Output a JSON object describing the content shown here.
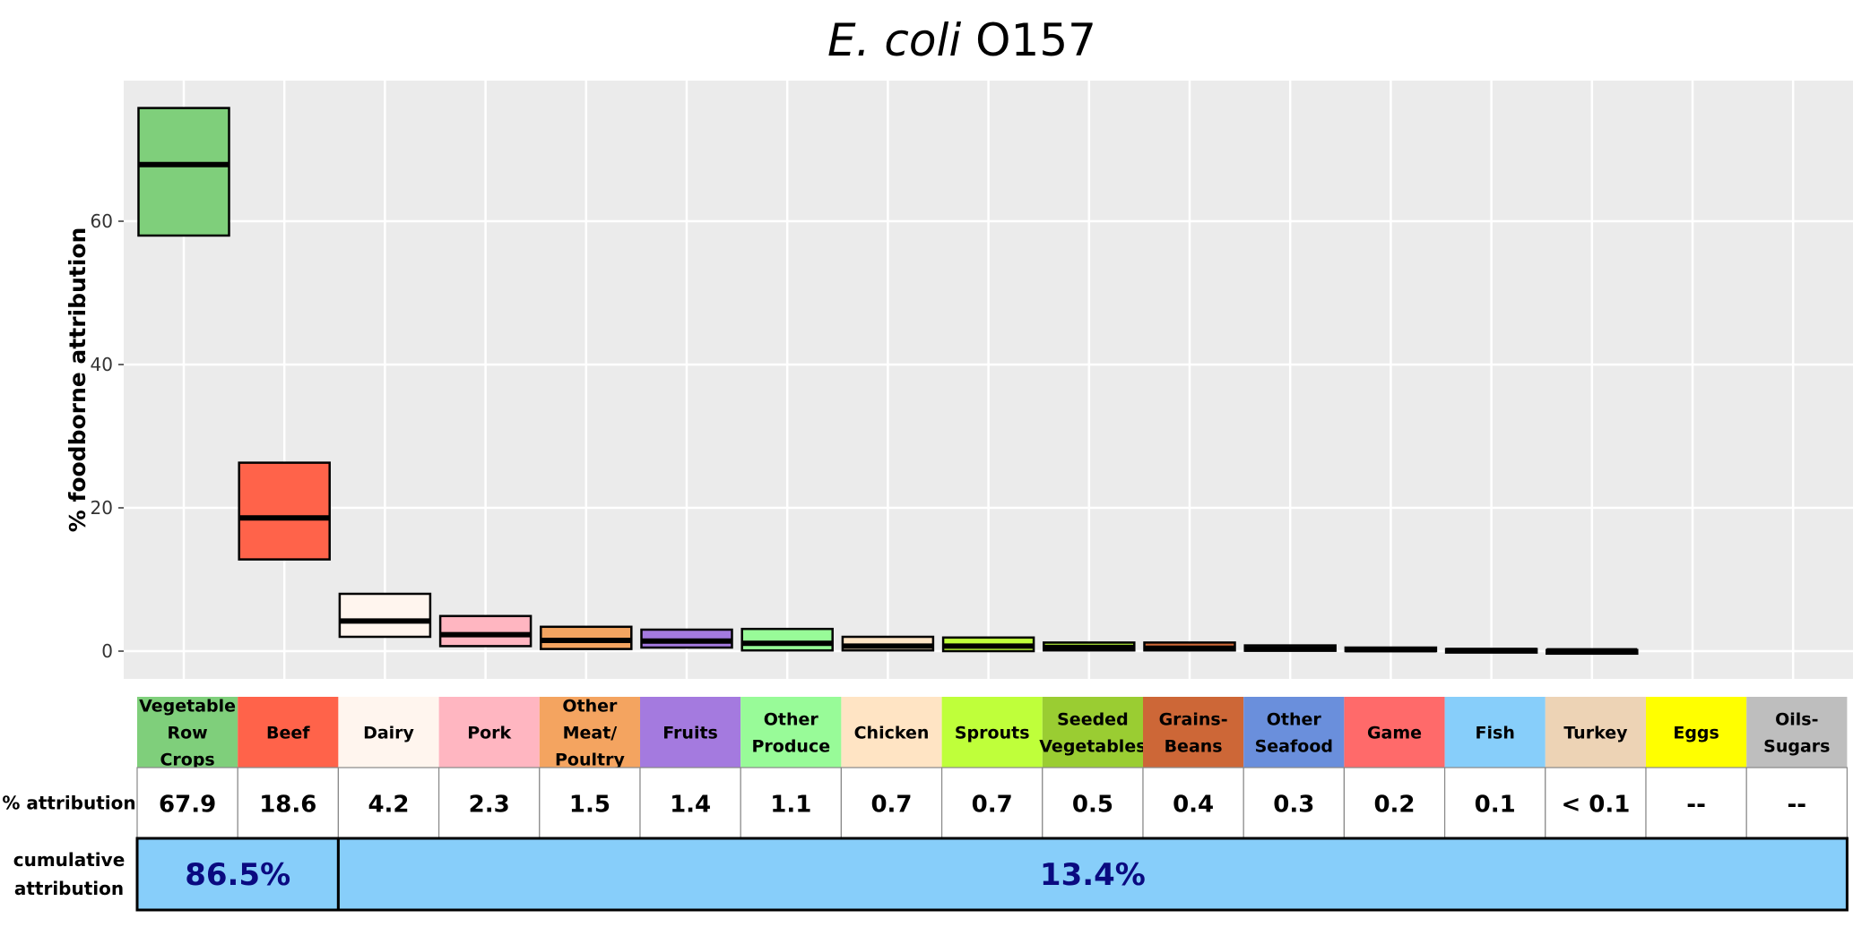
{
  "chart_data": {
    "type": "boxplot-table",
    "title_italic": "E. coli",
    "title_rest": "O157",
    "ylabel": "% foodborne attribution",
    "ylim": [
      -3.5,
      80
    ],
    "yticks": [
      0,
      20,
      40,
      60
    ],
    "grid": true,
    "categories": [
      {
        "lines": [
          "Vegetable",
          "Row",
          "Crops"
        ],
        "color": "#7fcf7b",
        "low": 58,
        "median": 67.9,
        "high": 75.8,
        "value": "67.9"
      },
      {
        "lines": [
          "Beef"
        ],
        "color": "#ff634a",
        "low": 12.8,
        "median": 18.6,
        "high": 26.3,
        "value": "18.6"
      },
      {
        "lines": [
          "Dairy"
        ],
        "color": "#fff5ee",
        "low": 2.0,
        "median": 4.2,
        "high": 8.0,
        "value": "4.2"
      },
      {
        "lines": [
          "Pork"
        ],
        "color": "#ffb6c1",
        "low": 0.7,
        "median": 2.3,
        "high": 4.9,
        "value": "2.3"
      },
      {
        "lines": [
          "Other",
          "Meat/",
          "Poultry"
        ],
        "color": "#f4a460",
        "low": 0.3,
        "median": 1.5,
        "high": 3.4,
        "value": "1.5"
      },
      {
        "lines": [
          "Fruits"
        ],
        "color": "#a47adf",
        "low": 0.5,
        "median": 1.4,
        "high": 3.0,
        "value": "1.4"
      },
      {
        "lines": [
          "Other",
          "Produce"
        ],
        "color": "#98fb98",
        "low": 0.1,
        "median": 1.1,
        "high": 3.1,
        "value": "1.1"
      },
      {
        "lines": [
          "Chicken"
        ],
        "color": "#ffe4c4",
        "low": 0.1,
        "median": 0.7,
        "high": 2.0,
        "value": "0.7"
      },
      {
        "lines": [
          "Sprouts"
        ],
        "color": "#bfff3a",
        "low": 0.0,
        "median": 0.7,
        "high": 1.9,
        "value": "0.7"
      },
      {
        "lines": [
          "Seeded",
          "Vegetables"
        ],
        "color": "#9acd32",
        "low": 0.1,
        "median": 0.5,
        "high": 1.2,
        "value": "0.5"
      },
      {
        "lines": [
          "Grains-",
          "Beans"
        ],
        "color": "#cd6737",
        "low": 0.1,
        "median": 0.4,
        "high": 1.2,
        "value": "0.4"
      },
      {
        "lines": [
          "Other",
          "Seafood"
        ],
        "color": "#6a8fdc",
        "low": 0.05,
        "median": 0.3,
        "high": 0.8,
        "value": "0.3"
      },
      {
        "lines": [
          "Game"
        ],
        "color": "#ff6a6a",
        "low": 0.0,
        "median": 0.2,
        "high": 0.5,
        "value": "0.2"
      },
      {
        "lines": [
          "Fish"
        ],
        "color": "#87cefa",
        "low": 0.0,
        "median": 0.1,
        "high": 0.3,
        "value": "0.1"
      },
      {
        "lines": [
          "Turkey"
        ],
        "color": "#edd3b5",
        "low": 0.0,
        "median": 0.05,
        "high": 0.15,
        "value": "< 0.1"
      },
      {
        "lines": [
          "Eggs"
        ],
        "color": "#ffff00",
        "value": "--"
      },
      {
        "lines": [
          "Oils-",
          "Sugars"
        ],
        "color": "#bebebe",
        "value": "--"
      }
    ],
    "row_labels": {
      "attribution": [
        "% attribution"
      ],
      "cumulative": [
        "cumulative",
        "attribution"
      ]
    },
    "cumulative": [
      {
        "label": "86.5%",
        "span": [
          0,
          1
        ]
      },
      {
        "label": "13.4%",
        "span": [
          2,
          16
        ]
      }
    ],
    "cumulative_color": "#87cefa"
  }
}
